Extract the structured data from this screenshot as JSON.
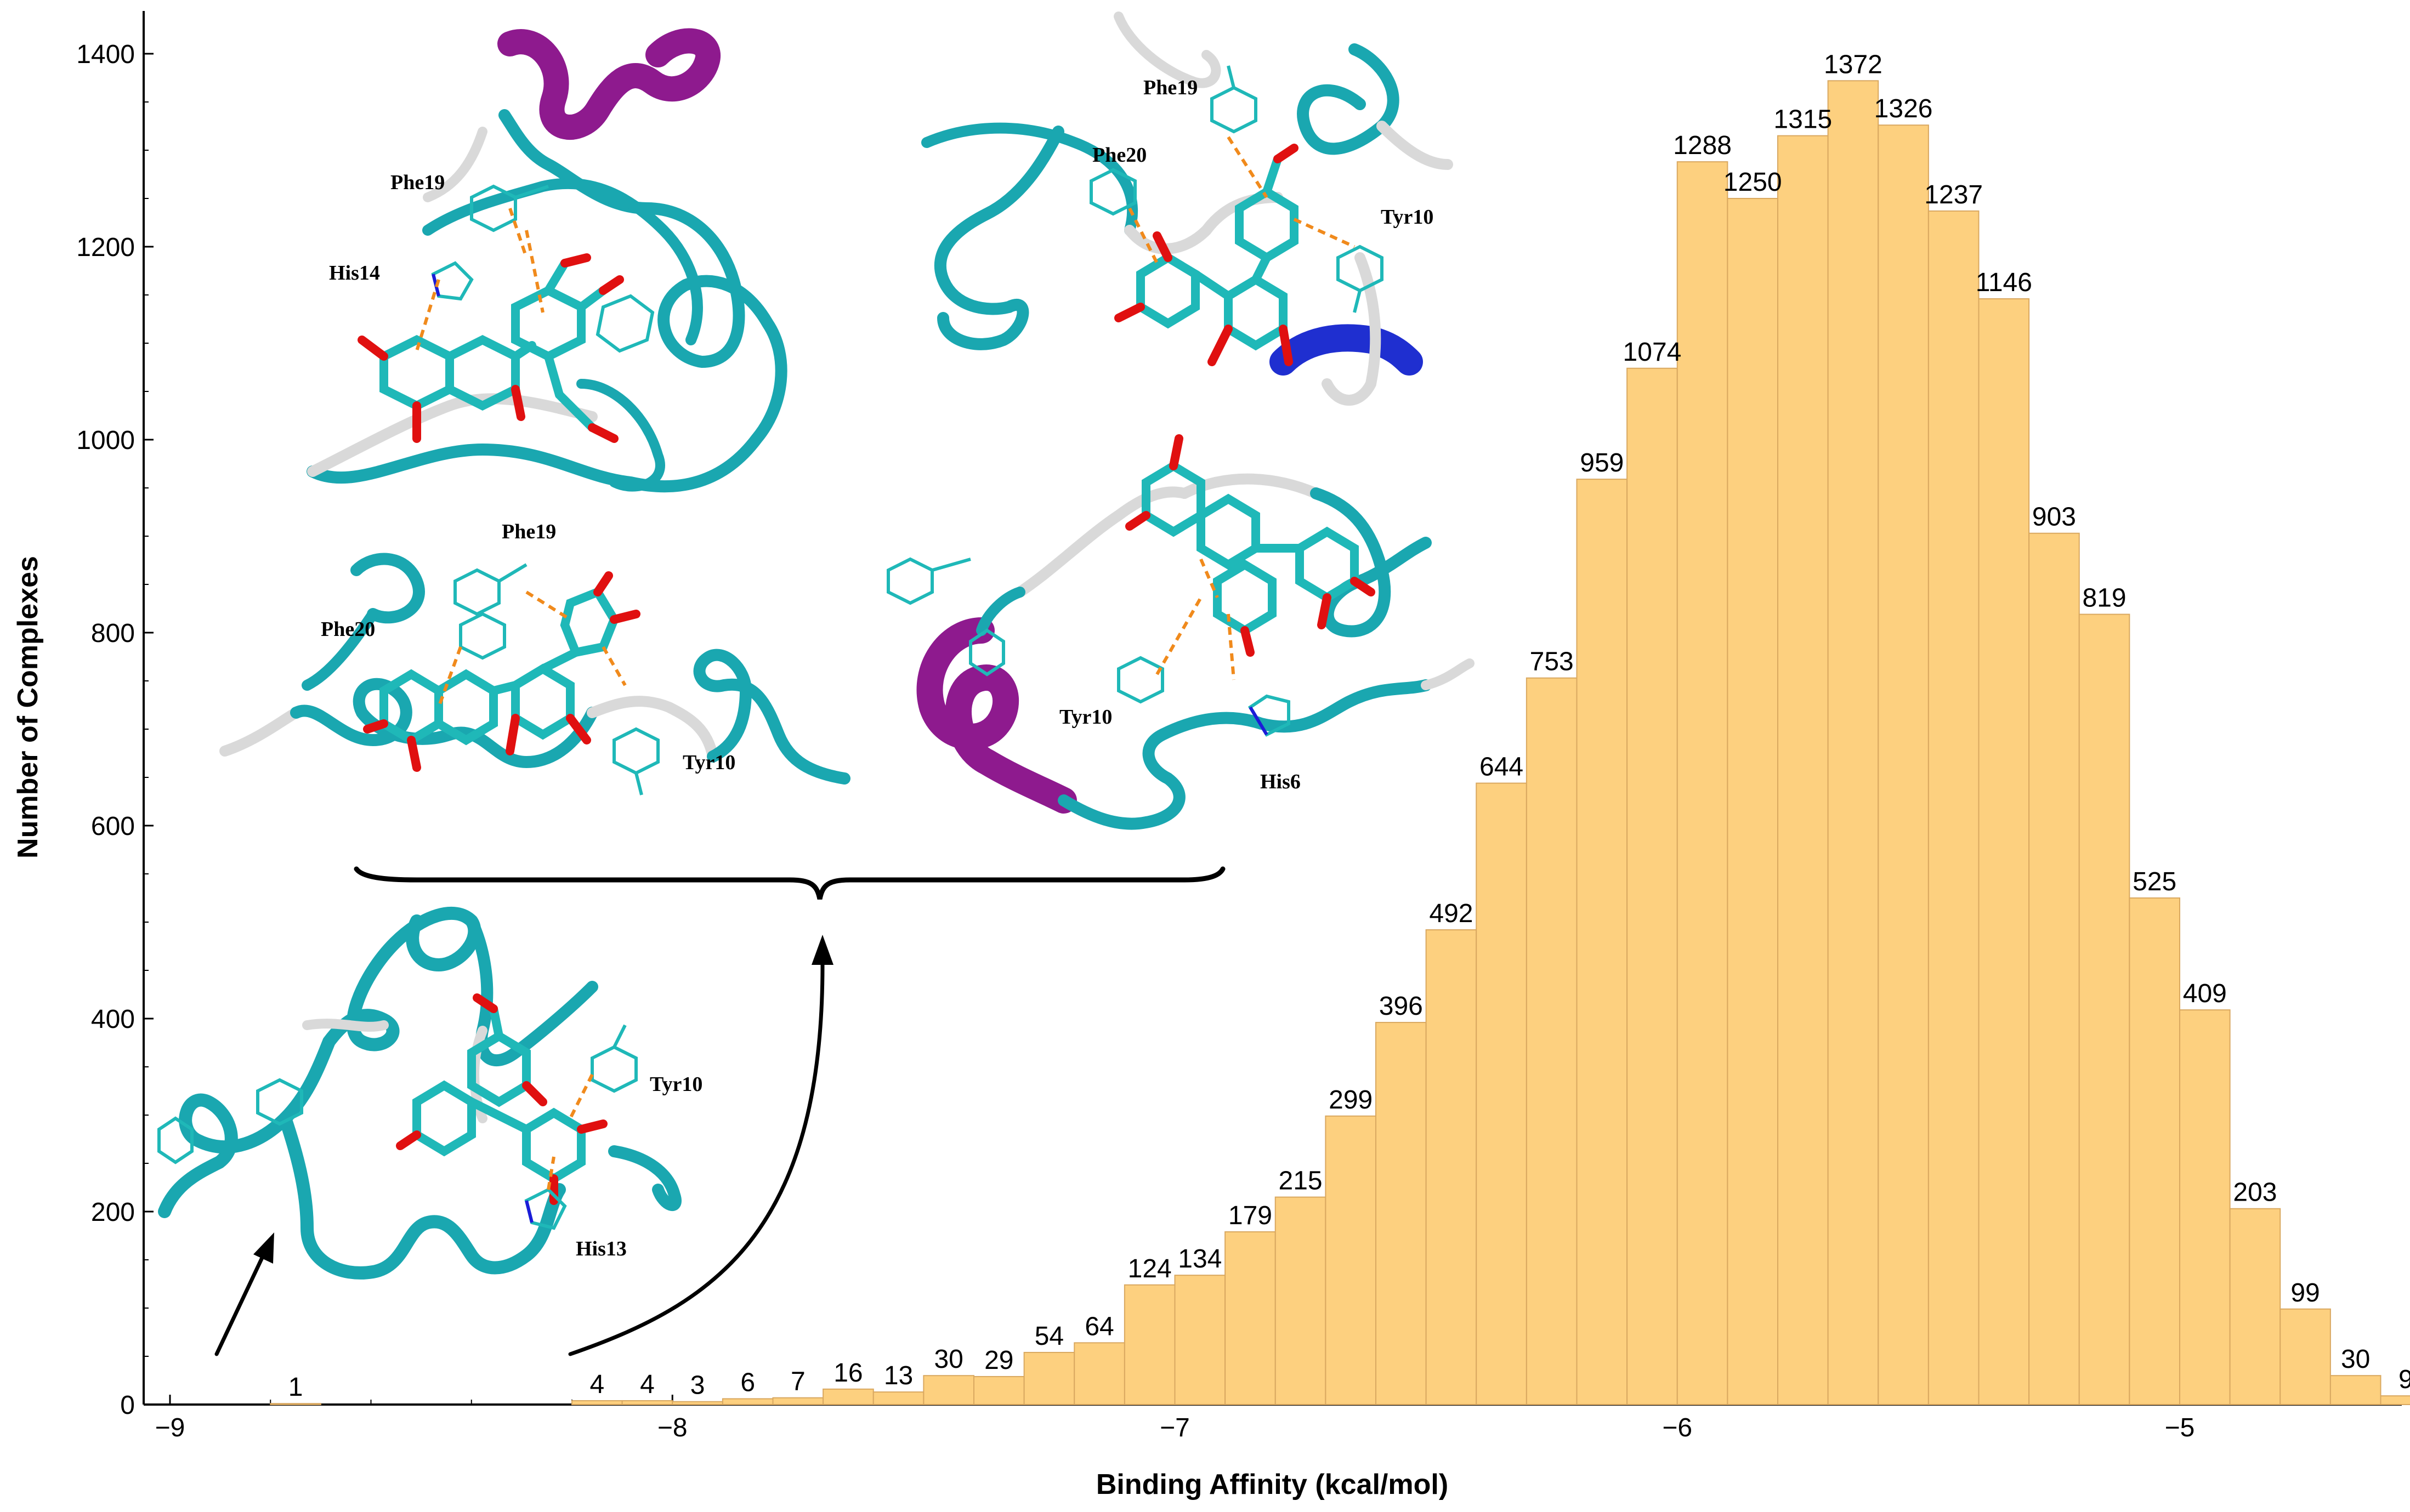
{
  "chart_data": {
    "type": "bar",
    "title": "",
    "xlabel": "Binding Affinity (kcal/mol)",
    "ylabel": "Number of Complexes",
    "bin_width": 0.1,
    "bin_starts": [
      -9.0,
      -8.9,
      -8.8,
      -8.7,
      -8.6,
      -8.5,
      -8.4,
      -8.3,
      -8.2,
      -8.1,
      -8.0,
      -7.9,
      -7.8,
      -7.7,
      -7.6,
      -7.5,
      -7.4,
      -7.3,
      -7.2,
      -7.1,
      -7.0,
      -6.9,
      -6.8,
      -6.7,
      -6.6,
      -6.5,
      -6.4,
      -6.3,
      -6.2,
      -6.1,
      -6.0,
      -5.9,
      -5.8,
      -5.7,
      -5.6,
      -5.5,
      -5.4,
      -5.3,
      -5.2,
      -5.1,
      -5.0,
      -4.9,
      -4.8,
      -4.7,
      -4.6
    ],
    "values": [
      0,
      0,
      1,
      0,
      0,
      0,
      0,
      0,
      4,
      4,
      3,
      6,
      7,
      16,
      13,
      30,
      29,
      54,
      64,
      124,
      134,
      179,
      215,
      299,
      396,
      492,
      644,
      753,
      959,
      1074,
      1288,
      1250,
      1315,
      1372,
      1326,
      1237,
      1146,
      903,
      819,
      525,
      409,
      203,
      99,
      30,
      9
    ],
    "label_texts": [
      "",
      "",
      "1",
      "",
      "",
      "",
      "",
      "",
      "4",
      "4",
      "3",
      "6",
      "7",
      "16",
      "13",
      "30",
      "29",
      "54",
      "64",
      "124",
      "134",
      "179",
      "215",
      "299",
      "396",
      "492",
      "644",
      "753",
      "959",
      "1074",
      "1288",
      "1250",
      "1315",
      "1372",
      "1326",
      "1237",
      "1146",
      "903",
      "819",
      "525",
      "409",
      "203",
      "99",
      "30",
      "9"
    ],
    "xlim": [
      -9.05,
      -4.4
    ],
    "ylim": [
      0,
      1450
    ],
    "x_ticks": [
      -9,
      -8,
      -7,
      -6,
      -5
    ],
    "x_tick_labels": [
      "−9",
      "−8",
      "−7",
      "−6",
      "−5"
    ],
    "y_ticks": [
      0,
      200,
      400,
      600,
      800,
      1000,
      1200,
      1400
    ],
    "y_tick_labels": [
      "0",
      "200",
      "400",
      "600",
      "800",
      "1000",
      "1200",
      "1400"
    ],
    "bar_color": "#fdd07f",
    "bar_edge_color": "#d9a860",
    "grid": false,
    "legend": "none"
  },
  "insets": {
    "residue_labels": {
      "top_left": [
        "Phe19",
        "His14"
      ],
      "top_right": [
        "Phe19",
        "Phe20",
        "Tyr10"
      ],
      "mid_left": [
        "Phe19",
        "Phe20",
        "Tyr10"
      ],
      "mid_right": [
        "Tyr10",
        "His6"
      ],
      "bottom_left": [
        "Tyr10",
        "His13"
      ]
    },
    "colors": {
      "coil": "#1aa7b0",
      "helix": "#8e1a8e",
      "turn": "#d9d9d9",
      "sheet": "#1f2fd0",
      "carbon": "#1fb8b8",
      "oxygen": "#e01010",
      "nitrogen": "#1c1cd8",
      "hbond": "#f08a1c"
    }
  }
}
